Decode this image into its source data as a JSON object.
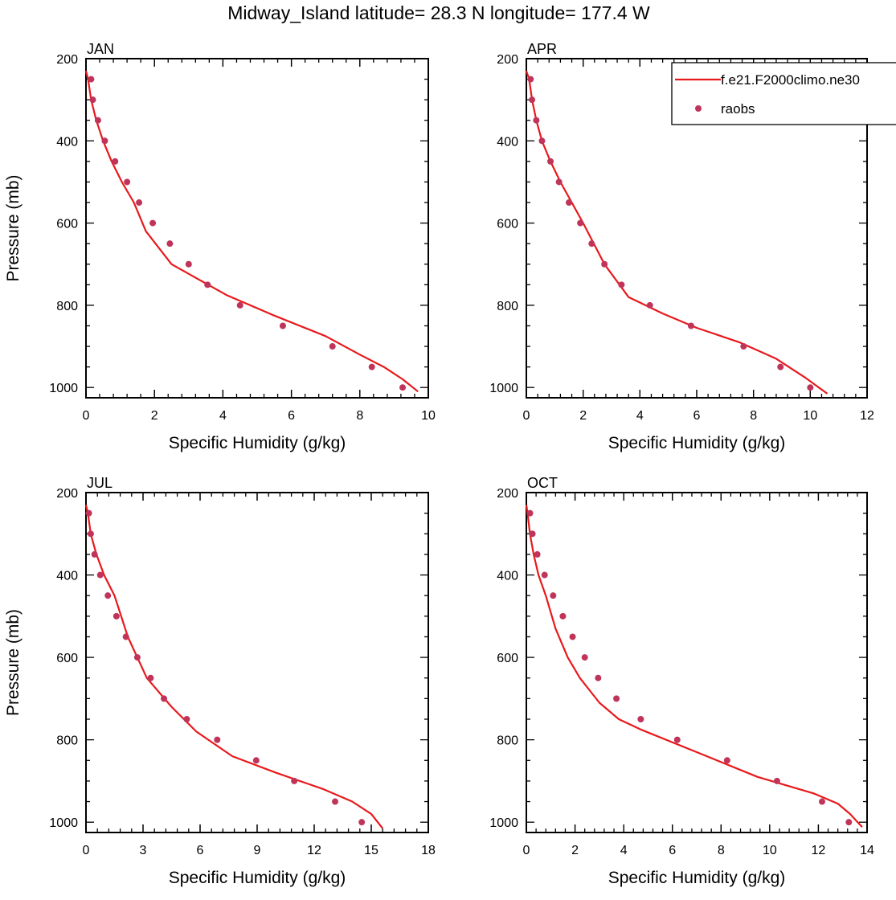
{
  "figure": {
    "title": "Midway_Island  latitude= 28.3 N longitude= 177.4 W",
    "xlabel": "Specific Humidity (g/kg)",
    "ylabel": "Pressure (mb)"
  },
  "legend": {
    "entries": [
      {
        "label": "f.e21.F2000climo.ne30",
        "style": "line",
        "color": "#e8191c"
      },
      {
        "label": "raobs",
        "style": "marker",
        "color": "#c0345a"
      }
    ],
    "placement": "top-right of APR panel"
  },
  "colors": {
    "model_line": "#e8191c",
    "obs_marker": "#c0345a",
    "axes": "#000000"
  },
  "chart_data": [
    {
      "type": "line",
      "title": "JAN",
      "xlabel": "Specific Humidity (g/kg)",
      "ylabel": "Pressure (mb)",
      "xlim": [
        0,
        10
      ],
      "ylim": [
        1025,
        200
      ],
      "xticks": [
        0,
        2,
        4,
        6,
        8,
        10
      ],
      "yticks": [
        200,
        400,
        600,
        800,
        1000
      ],
      "series": [
        {
          "name": "f.e21.F2000climo.ne30",
          "kind": "line",
          "x": [
            0.0,
            0.06,
            0.15,
            0.3,
            0.5,
            0.75,
            1.05,
            1.4,
            1.75,
            2.5,
            4.1,
            5.5,
            7.0,
            8.0,
            8.7,
            9.25,
            9.7
          ],
          "y": [
            230,
            250,
            300,
            350,
            400,
            450,
            500,
            550,
            620,
            700,
            775,
            825,
            875,
            920,
            950,
            980,
            1010
          ]
        },
        {
          "name": "raobs",
          "kind": "scatter",
          "x": [
            0.15,
            0.2,
            0.35,
            0.55,
            0.85,
            1.2,
            1.55,
            1.95,
            2.45,
            3.0,
            3.55,
            4.5,
            5.75,
            7.2,
            8.35,
            9.25
          ],
          "y": [
            250,
            300,
            350,
            400,
            450,
            500,
            550,
            600,
            650,
            700,
            750,
            800,
            850,
            900,
            950,
            1000
          ]
        }
      ]
    },
    {
      "type": "line",
      "title": "APR",
      "xlabel": "Specific Humidity (g/kg)",
      "ylabel": "",
      "xlim": [
        0,
        12
      ],
      "ylim": [
        1025,
        200
      ],
      "xticks": [
        0,
        2,
        4,
        6,
        8,
        10,
        12
      ],
      "yticks": [
        200,
        400,
        600,
        800,
        1000
      ],
      "series": [
        {
          "name": "f.e21.F2000climo.ne30",
          "kind": "line",
          "x": [
            0.0,
            0.1,
            0.2,
            0.35,
            0.55,
            0.85,
            1.2,
            1.6,
            2.0,
            2.75,
            3.6,
            4.8,
            6.0,
            7.5,
            8.8,
            9.8,
            10.6
          ],
          "y": [
            230,
            250,
            300,
            350,
            400,
            450,
            500,
            550,
            600,
            700,
            780,
            820,
            855,
            890,
            930,
            975,
            1015
          ]
        },
        {
          "name": "raobs",
          "kind": "scatter",
          "x": [
            0.15,
            0.2,
            0.35,
            0.55,
            0.85,
            1.15,
            1.5,
            1.9,
            2.3,
            2.75,
            3.35,
            4.35,
            5.8,
            7.65,
            8.95,
            10.0
          ],
          "y": [
            250,
            300,
            350,
            400,
            450,
            500,
            550,
            600,
            650,
            700,
            750,
            800,
            850,
            900,
            950,
            1000
          ]
        }
      ]
    },
    {
      "type": "line",
      "title": "JUL",
      "xlabel": "Specific Humidity (g/kg)",
      "ylabel": "Pressure (mb)",
      "xlim": [
        0,
        18
      ],
      "ylim": [
        1025,
        200
      ],
      "xticks": [
        0,
        3,
        6,
        9,
        12,
        15,
        18
      ],
      "yticks": [
        200,
        400,
        600,
        800,
        1000
      ],
      "series": [
        {
          "name": "f.e21.F2000climo.ne30",
          "kind": "line",
          "x": [
            0.0,
            0.1,
            0.25,
            0.55,
            0.95,
            1.5,
            2.2,
            3.2,
            4.5,
            5.8,
            7.7,
            10.0,
            12.5,
            14.0,
            15.0,
            15.6
          ],
          "y": [
            230,
            250,
            300,
            350,
            400,
            450,
            550,
            650,
            720,
            780,
            840,
            880,
            920,
            950,
            980,
            1015
          ]
        },
        {
          "name": "raobs",
          "kind": "scatter",
          "x": [
            0.15,
            0.25,
            0.45,
            0.75,
            1.15,
            1.6,
            2.1,
            2.7,
            3.4,
            4.1,
            5.3,
            6.9,
            8.95,
            10.95,
            13.1,
            14.5
          ],
          "y": [
            250,
            300,
            350,
            400,
            450,
            500,
            550,
            600,
            650,
            700,
            750,
            800,
            850,
            900,
            950,
            1000
          ]
        }
      ]
    },
    {
      "type": "line",
      "title": "OCT",
      "xlabel": "Specific Humidity (g/kg)",
      "ylabel": "",
      "xlim": [
        0,
        14
      ],
      "ylim": [
        1025,
        200
      ],
      "xticks": [
        0,
        2,
        4,
        6,
        8,
        10,
        12,
        14
      ],
      "yticks": [
        200,
        400,
        600,
        800,
        1000
      ],
      "series": [
        {
          "name": "f.e21.F2000climo.ne30",
          "kind": "line",
          "x": [
            0.0,
            0.05,
            0.15,
            0.3,
            0.5,
            0.8,
            1.2,
            1.7,
            2.2,
            3.0,
            3.8,
            4.7,
            7.0,
            9.5,
            11.8,
            12.8,
            13.3,
            13.8
          ],
          "y": [
            230,
            250,
            300,
            350,
            400,
            450,
            530,
            600,
            650,
            710,
            750,
            775,
            830,
            890,
            930,
            955,
            980,
            1012
          ]
        },
        {
          "name": "raobs",
          "kind": "scatter",
          "x": [
            0.15,
            0.25,
            0.45,
            0.75,
            1.1,
            1.5,
            1.9,
            2.4,
            2.95,
            3.7,
            4.7,
            6.2,
            8.25,
            10.3,
            12.15,
            13.25
          ],
          "y": [
            250,
            300,
            350,
            400,
            450,
            500,
            550,
            600,
            650,
            700,
            750,
            800,
            850,
            900,
            950,
            1000
          ]
        }
      ]
    }
  ]
}
